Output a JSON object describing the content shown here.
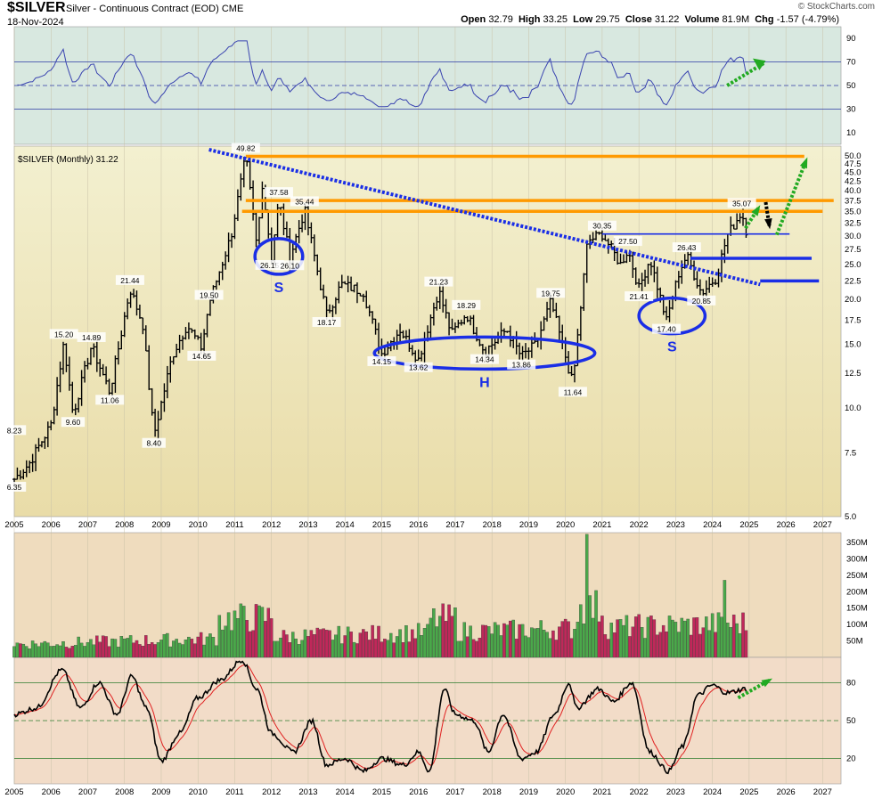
{
  "header": {
    "symbol": "$SILVER",
    "description": "Silver - Continuous Contract (EOD)",
    "exchange": "CME",
    "date": "18-Nov-2024",
    "copyright": "© StockCharts.com",
    "quote": {
      "open_label": "Open",
      "open": "32.79",
      "high_label": "High",
      "high": "33.25",
      "low_label": "Low",
      "low": "29.75",
      "close_label": "Close",
      "close": "31.22",
      "volume_label": "Volume",
      "volume": "81.9M",
      "chg_label": "Chg",
      "chg": "-1.57 (-4.79%)"
    }
  },
  "colors": {
    "rsi_bg": "#d8e8e0",
    "price_bg": "#ede6b8",
    "volume_bg": "#efdcbe",
    "stoch_bg": "#f2dcc8",
    "price_line": "#000000",
    "down_trend": "#1a2ee6",
    "resistance": "#ff9a00",
    "support": "#1a2ee6",
    "arrow_green": "#22aa22",
    "arrow_black": "#000000",
    "vol_up": "#4aa84a",
    "vol_down": "#c0285a"
  },
  "chart_data": [
    {
      "panel": "rsi",
      "type": "line",
      "ylim": [
        0,
        100
      ],
      "y_ticks": [
        10,
        30,
        50,
        70,
        90
      ],
      "reference_lines": [
        30,
        50,
        70
      ],
      "series_key": "rsi",
      "annotation": "green dashed arrow up at end"
    },
    {
      "panel": "price",
      "type": "ohlc",
      "title": "$SILVER (Monthly) 31.22",
      "scale": "log",
      "ylim": [
        5.0,
        52.0
      ],
      "y_ticks": [
        5.0,
        7.5,
        10.0,
        12.5,
        15.0,
        17.5,
        20.0,
        22.5,
        25.0,
        27.5,
        30.0,
        32.5,
        35.0,
        37.5,
        40.0,
        42.5,
        45.0,
        47.5,
        50.0
      ],
      "x_ticks": [
        "2005",
        "2006",
        "2007",
        "2008",
        "2009",
        "2010",
        "2011",
        "2012",
        "2013",
        "2014",
        "2015",
        "2016",
        "2017",
        "2018",
        "2019",
        "2020",
        "2021",
        "2022",
        "2023",
        "2024",
        "2025",
        "2026",
        "2027"
      ],
      "xlim": [
        2005.0,
        2027.5
      ],
      "key_points": [
        {
          "x": 2005.0,
          "y": 6.35
        },
        {
          "x": 2005.4,
          "y": 7.0
        },
        {
          "x": 2006.0,
          "y": 9.0
        },
        {
          "x": 2006.35,
          "y": 15.2
        },
        {
          "x": 2006.6,
          "y": 9.6
        },
        {
          "x": 2007.1,
          "y": 14.89
        },
        {
          "x": 2007.6,
          "y": 11.06
        },
        {
          "x": 2008.15,
          "y": 21.44
        },
        {
          "x": 2008.5,
          "y": 17.0
        },
        {
          "x": 2008.8,
          "y": 8.4
        },
        {
          "x": 2009.3,
          "y": 14.0
        },
        {
          "x": 2009.7,
          "y": 17.0
        },
        {
          "x": 2010.1,
          "y": 14.65
        },
        {
          "x": 2010.3,
          "y": 19.5
        },
        {
          "x": 2010.9,
          "y": 30.0
        },
        {
          "x": 2011.3,
          "y": 49.82
        },
        {
          "x": 2011.6,
          "y": 28.0
        },
        {
          "x": 2011.75,
          "y": 42.0
        },
        {
          "x": 2012.0,
          "y": 26.15
        },
        {
          "x": 2012.2,
          "y": 37.58
        },
        {
          "x": 2012.5,
          "y": 26.1
        },
        {
          "x": 2012.9,
          "y": 35.44
        },
        {
          "x": 2013.5,
          "y": 18.17
        },
        {
          "x": 2013.9,
          "y": 22.0
        },
        {
          "x": 2014.5,
          "y": 21.0
        },
        {
          "x": 2015.0,
          "y": 14.15
        },
        {
          "x": 2015.5,
          "y": 16.5
        },
        {
          "x": 2016.0,
          "y": 13.62
        },
        {
          "x": 2016.55,
          "y": 21.23
        },
        {
          "x": 2016.9,
          "y": 16.0
        },
        {
          "x": 2017.3,
          "y": 18.29
        },
        {
          "x": 2017.8,
          "y": 14.34
        },
        {
          "x": 2018.4,
          "y": 16.5
        },
        {
          "x": 2018.8,
          "y": 13.86
        },
        {
          "x": 2019.2,
          "y": 15.0
        },
        {
          "x": 2019.6,
          "y": 19.75
        },
        {
          "x": 2020.2,
          "y": 11.64
        },
        {
          "x": 2020.6,
          "y": 29.0
        },
        {
          "x": 2021.0,
          "y": 30.35
        },
        {
          "x": 2021.5,
          "y": 25.0
        },
        {
          "x": 2021.7,
          "y": 27.5
        },
        {
          "x": 2022.0,
          "y": 21.41
        },
        {
          "x": 2022.3,
          "y": 26.0
        },
        {
          "x": 2022.75,
          "y": 17.4
        },
        {
          "x": 2023.1,
          "y": 24.0
        },
        {
          "x": 2023.3,
          "y": 26.43
        },
        {
          "x": 2023.7,
          "y": 20.85
        },
        {
          "x": 2024.1,
          "y": 23.0
        },
        {
          "x": 2024.4,
          "y": 30.0
        },
        {
          "x": 2024.8,
          "y": 35.07
        },
        {
          "x": 2024.9,
          "y": 31.22
        }
      ],
      "data_labels": [
        {
          "text": "8.23",
          "x": 2005.0,
          "y": 8.23,
          "pos": "above"
        },
        {
          "text": "6.35",
          "x": 2005.0,
          "y": 6.35,
          "pos": "below"
        },
        {
          "text": "15.20",
          "x": 2006.35,
          "y": 15.2,
          "pos": "above"
        },
        {
          "text": "9.60",
          "x": 2006.6,
          "y": 9.6,
          "pos": "below"
        },
        {
          "text": "14.89",
          "x": 2007.1,
          "y": 14.89,
          "pos": "above"
        },
        {
          "text": "11.06",
          "x": 2007.6,
          "y": 11.06,
          "pos": "below"
        },
        {
          "text": "21.44",
          "x": 2008.15,
          "y": 21.44,
          "pos": "above"
        },
        {
          "text": "8.40",
          "x": 2008.8,
          "y": 8.4,
          "pos": "below"
        },
        {
          "text": "19.50",
          "x": 2010.3,
          "y": 19.5,
          "pos": "above"
        },
        {
          "text": "14.65",
          "x": 2010.1,
          "y": 14.65,
          "pos": "below"
        },
        {
          "text": "49.82",
          "x": 2011.3,
          "y": 49.82,
          "pos": "above"
        },
        {
          "text": "26.15",
          "x": 2011.95,
          "y": 26.15,
          "pos": "below"
        },
        {
          "text": "37.58",
          "x": 2012.2,
          "y": 37.58,
          "pos": "above"
        },
        {
          "text": "26.10",
          "x": 2012.5,
          "y": 26.1,
          "pos": "below"
        },
        {
          "text": "35.44",
          "x": 2012.9,
          "y": 35.44,
          "pos": "above"
        },
        {
          "text": "18.17",
          "x": 2013.5,
          "y": 18.17,
          "pos": "below"
        },
        {
          "text": "14.15",
          "x": 2015.0,
          "y": 14.15,
          "pos": "below"
        },
        {
          "text": "13.62",
          "x": 2016.0,
          "y": 13.62,
          "pos": "below"
        },
        {
          "text": "21.23",
          "x": 2016.55,
          "y": 21.23,
          "pos": "above"
        },
        {
          "text": "18.29",
          "x": 2017.3,
          "y": 18.29,
          "pos": "above"
        },
        {
          "text": "14.34",
          "x": 2017.8,
          "y": 14.34,
          "pos": "below"
        },
        {
          "text": "13.86",
          "x": 2018.8,
          "y": 13.86,
          "pos": "below"
        },
        {
          "text": "19.75",
          "x": 2019.6,
          "y": 19.75,
          "pos": "above"
        },
        {
          "text": "11.64",
          "x": 2020.2,
          "y": 11.64,
          "pos": "below"
        },
        {
          "text": "30.35",
          "x": 2021.0,
          "y": 30.35,
          "pos": "above"
        },
        {
          "text": "27.50",
          "x": 2021.7,
          "y": 27.5,
          "pos": "above"
        },
        {
          "text": "21.41",
          "x": 2022.0,
          "y": 21.41,
          "pos": "below"
        },
        {
          "text": "17.40",
          "x": 2022.75,
          "y": 17.4,
          "pos": "below"
        },
        {
          "text": "26.43",
          "x": 2023.3,
          "y": 26.43,
          "pos": "above"
        },
        {
          "text": "20.85",
          "x": 2023.7,
          "y": 20.85,
          "pos": "below"
        },
        {
          "text": "35.07",
          "x": 2024.8,
          "y": 35.07,
          "pos": "above"
        }
      ],
      "resistance_lines": [
        {
          "y": 49.82,
          "x0": 2011.3,
          "x1": 2026.5
        },
        {
          "y": 37.58,
          "x0": 2011.3,
          "x1": 2027.3
        },
        {
          "y": 35.07,
          "x0": 2011.2,
          "x1": 2027.0
        }
      ],
      "support_lines": [
        {
          "y": 30.35,
          "x0": 2021.0,
          "x1": 2026.1
        },
        {
          "y": 26.0,
          "x0": 2023.4,
          "x1": 2026.7
        },
        {
          "y": 22.5,
          "x0": 2025.3,
          "x1": 2026.9
        }
      ],
      "trendline": {
        "x0": 2010.3,
        "y0": 52.0,
        "x1": 2025.3,
        "y1": 22.0
      },
      "ellipses": [
        {
          "cx": 2012.2,
          "cy": 26.3,
          "rx": 0.65,
          "label": "S"
        },
        {
          "cx": 2017.8,
          "cy": 14.2,
          "rx": 3.0,
          "label": "H"
        },
        {
          "cx": 2022.9,
          "cy": 18.0,
          "rx": 0.9,
          "label": "S"
        }
      ]
    },
    {
      "panel": "volume",
      "type": "bar",
      "y_ticks": [
        "50M",
        "100M",
        "150M",
        "200M",
        "250M",
        "300M",
        "350M"
      ],
      "ylim": [
        0,
        380
      ],
      "unit": "M"
    },
    {
      "panel": "stochastic",
      "type": "line",
      "ylim": [
        0,
        100
      ],
      "y_ticks": [
        20,
        50,
        80
      ],
      "reference_lines": [
        20,
        50,
        80
      ],
      "x_ticks": [
        "2005",
        "2006",
        "2007",
        "2008",
        "2009",
        "2010",
        "2011",
        "2012",
        "2013",
        "2014",
        "2015",
        "2016",
        "2017",
        "2018",
        "2019",
        "2020",
        "2021",
        "2022",
        "2023",
        "2024",
        "2025",
        "2026",
        "2027"
      ],
      "key_points": [
        {
          "x": 2005.0,
          "y": 55
        },
        {
          "x": 2005.6,
          "y": 60
        },
        {
          "x": 2006.3,
          "y": 90
        },
        {
          "x": 2006.8,
          "y": 60
        },
        {
          "x": 2007.3,
          "y": 80
        },
        {
          "x": 2007.8,
          "y": 55
        },
        {
          "x": 2008.2,
          "y": 85
        },
        {
          "x": 2008.6,
          "y": 60
        },
        {
          "x": 2009.0,
          "y": 18
        },
        {
          "x": 2009.5,
          "y": 40
        },
        {
          "x": 2010.0,
          "y": 68
        },
        {
          "x": 2010.6,
          "y": 82
        },
        {
          "x": 2011.2,
          "y": 98
        },
        {
          "x": 2011.6,
          "y": 75
        },
        {
          "x": 2012.0,
          "y": 40
        },
        {
          "x": 2012.6,
          "y": 25
        },
        {
          "x": 2013.1,
          "y": 50
        },
        {
          "x": 2013.5,
          "y": 15
        },
        {
          "x": 2014.0,
          "y": 20
        },
        {
          "x": 2014.5,
          "y": 10
        },
        {
          "x": 2015.0,
          "y": 20
        },
        {
          "x": 2015.6,
          "y": 15
        },
        {
          "x": 2016.0,
          "y": 25
        },
        {
          "x": 2016.3,
          "y": 10
        },
        {
          "x": 2016.7,
          "y": 75
        },
        {
          "x": 2017.0,
          "y": 55
        },
        {
          "x": 2017.5,
          "y": 50
        },
        {
          "x": 2017.9,
          "y": 25
        },
        {
          "x": 2018.3,
          "y": 55
        },
        {
          "x": 2018.8,
          "y": 20
        },
        {
          "x": 2019.2,
          "y": 25
        },
        {
          "x": 2019.7,
          "y": 55
        },
        {
          "x": 2020.1,
          "y": 80
        },
        {
          "x": 2020.3,
          "y": 60
        },
        {
          "x": 2020.9,
          "y": 75
        },
        {
          "x": 2021.3,
          "y": 65
        },
        {
          "x": 2021.8,
          "y": 80
        },
        {
          "x": 2022.3,
          "y": 25
        },
        {
          "x": 2022.8,
          "y": 10
        },
        {
          "x": 2023.2,
          "y": 30
        },
        {
          "x": 2023.6,
          "y": 70
        },
        {
          "x": 2024.0,
          "y": 78
        },
        {
          "x": 2024.4,
          "y": 72
        },
        {
          "x": 2024.9,
          "y": 75
        }
      ],
      "annotation": "green dashed arrow up at end"
    }
  ]
}
